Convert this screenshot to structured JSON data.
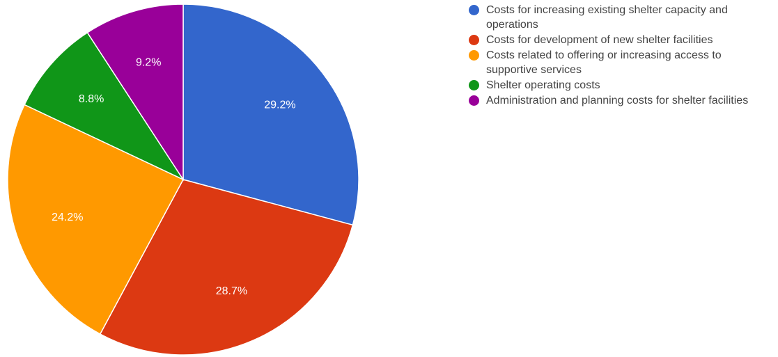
{
  "chart_data": {
    "type": "pie",
    "title": "",
    "start_angle_deg": 0,
    "direction": "clockwise",
    "legend_position": "right",
    "series": [
      {
        "slices": [
          {
            "label": "Costs for increasing existing shelter capacity and operations",
            "value": 29.2,
            "value_label": "29.2%",
            "color": "#3366cc"
          },
          {
            "label": "Costs for development of new shelter facilities",
            "value": 28.7,
            "value_label": "28.7%",
            "color": "#dc3912"
          },
          {
            "label": "Costs related to offering or increasing access to supportive services",
            "value": 24.2,
            "value_label": "24.2%",
            "color": "#ff9900"
          },
          {
            "label": "Shelter operating costs",
            "value": 8.8,
            "value_label": "8.8%",
            "color": "#109618"
          },
          {
            "label": "Administration and planning costs for shelter facilities",
            "value": 9.2,
            "value_label": "9.2%",
            "color": "#990099"
          }
        ]
      }
    ]
  }
}
